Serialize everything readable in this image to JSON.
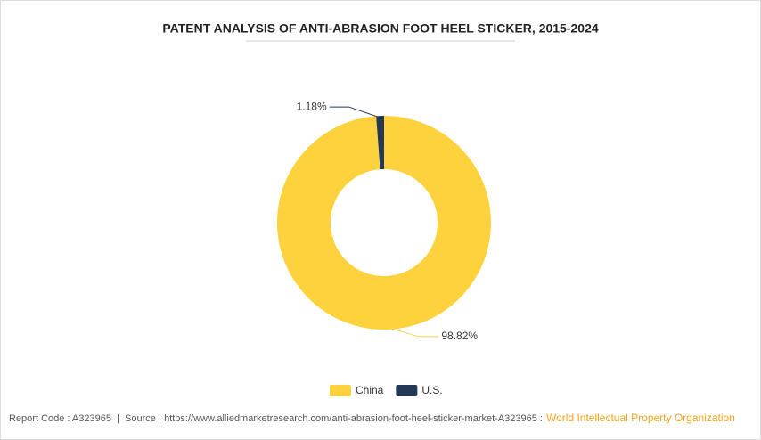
{
  "chart_data": {
    "type": "donut",
    "title": "PATENT ANALYSIS OF ANTI-ABRASION FOOT HEEL STICKER, 2015-2024",
    "categories": [
      "China",
      "U.S."
    ],
    "values": [
      98.82,
      1.18
    ],
    "value_labels": [
      "98.82%",
      "1.18%"
    ],
    "colors": [
      "#fdd23c",
      "#243858"
    ],
    "legend": "bottom"
  },
  "footer": {
    "text": "Report Code : A323965  |  Source : https://www.alliedmarketresearch.com/anti-abrasion-foot-heel-sticker-market-A323965 :",
    "org": "World Intellectual Property Organization"
  }
}
